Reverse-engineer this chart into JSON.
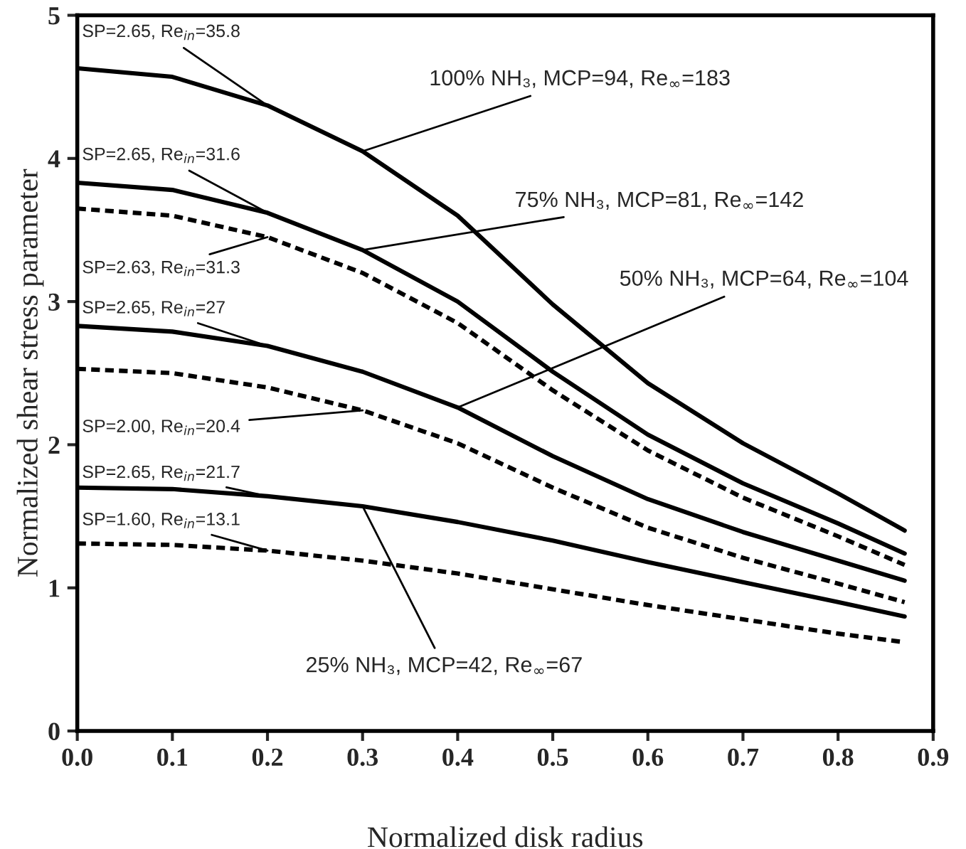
{
  "chart_data": {
    "type": "line",
    "xlabel": "Normalized disk radius",
    "ylabel": "Normalized shear stress parameter",
    "x": [
      0,
      0.1,
      0.2,
      0.3,
      0.4,
      0.5,
      0.6,
      0.7,
      0.8,
      0.87
    ],
    "xlim": [
      0,
      0.9
    ],
    "xticks": [
      {
        "value": 0,
        "label": "0.0"
      },
      0.1,
      0.2,
      0.3,
      0.4,
      0.5,
      0.6,
      0.7,
      0.8,
      0.9
    ],
    "ylim": [
      0,
      5
    ],
    "yticks": [
      0,
      1,
      2,
      3,
      4,
      5
    ],
    "grid": false,
    "legend": false,
    "marker": "none",
    "series": [
      {
        "color": "#000000",
        "line_style": "solid",
        "values": [
          4.63,
          4.57,
          4.37,
          4.05,
          3.6,
          2.98,
          2.43,
          2.01,
          1.66,
          1.4
        ]
      },
      {
        "color": "#000000",
        "line_style": "solid",
        "values": [
          3.83,
          3.78,
          3.62,
          3.36,
          3.0,
          2.51,
          2.07,
          1.73,
          1.45,
          1.24
        ]
      },
      {
        "color": "#000000",
        "line_style": "dashed",
        "values": [
          3.65,
          3.6,
          3.45,
          3.2,
          2.85,
          2.38,
          1.96,
          1.63,
          1.36,
          1.16
        ]
      },
      {
        "color": "#000000",
        "line_style": "solid",
        "values": [
          2.83,
          2.79,
          2.69,
          2.51,
          2.26,
          1.92,
          1.62,
          1.39,
          1.19,
          1.05
        ]
      },
      {
        "color": "#000000",
        "line_style": "dashed",
        "values": [
          2.53,
          2.5,
          2.4,
          2.24,
          2.01,
          1.7,
          1.42,
          1.21,
          1.03,
          0.9
        ]
      },
      {
        "color": "#000000",
        "line_style": "solid",
        "values": [
          1.7,
          1.69,
          1.64,
          1.57,
          1.46,
          1.33,
          1.18,
          1.04,
          0.9,
          0.8
        ]
      },
      {
        "color": "#000000",
        "line_style": "dashed",
        "values": [
          1.31,
          1.3,
          1.26,
          1.19,
          1.1,
          0.99,
          0.88,
          0.78,
          0.68,
          0.62
        ]
      }
    ],
    "annotations": [
      {
        "text": "SP=2.65, Re$_{in}$=35.8",
        "x": 0.2,
        "y": 4.37
      },
      {
        "text": "SP=2.65, Re$_{in}$=31.6",
        "x": 0.2,
        "y": 3.62
      },
      {
        "text": "SP=2.63, Re$_{in}$=31.3",
        "x": 0.2,
        "y": 3.45
      },
      {
        "text": "SP=2.65, Re$_{in}$=27",
        "x": 0.2,
        "y": 2.69
      },
      {
        "text": "SP=2.00, Re$_{in}$=20.4",
        "x": 0.3,
        "y": 2.24
      },
      {
        "text": "SP=2.65, Re$_{in}$=21.7",
        "x": 0.2,
        "y": 1.64
      },
      {
        "text": "SP=1.60, Re$_{in}$=13.1",
        "x": 0.2,
        "y": 1.26
      },
      {
        "text": "100% NH₃, MCP=94, Re$_{∞}$=183",
        "x": 0.3,
        "y": 4.05
      },
      {
        "text": "75% NH₃, MCP=81, Re$_{∞}$=142",
        "x": 0.3,
        "y": 3.36
      },
      {
        "text": "50% NH₃, MCP=64, Re$_{∞}$=104",
        "x": 0.4,
        "y": 2.26
      },
      {
        "text": "25% NH₃, MCP=42, Re$_{∞}$=67",
        "x": 0.3,
        "y": 1.57
      }
    ]
  }
}
